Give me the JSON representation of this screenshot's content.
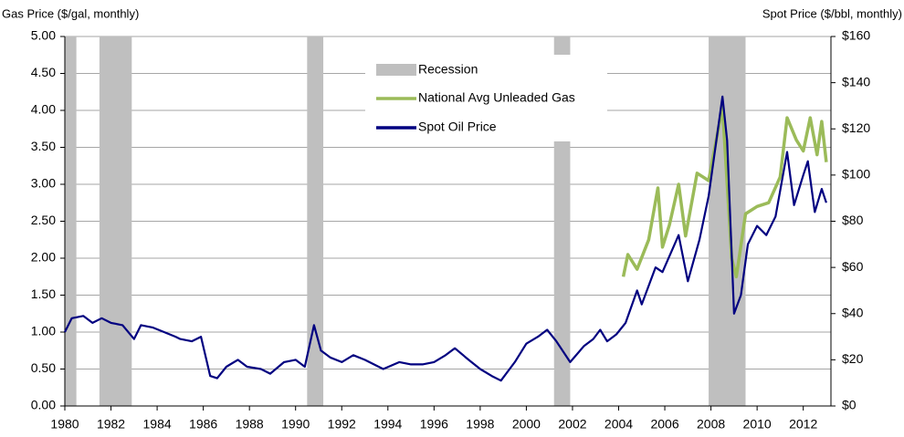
{
  "chart_data": {
    "type": "line",
    "y_label": "Gas Price ($/gal, monthly)",
    "y2_label": "Spot Price ($/bbl, monthly)",
    "xlim": [
      1980,
      2013.2
    ],
    "xticks": [
      1980,
      1982,
      1984,
      1986,
      1988,
      1990,
      1992,
      1994,
      1996,
      1998,
      2000,
      2002,
      2004,
      2006,
      2008,
      2010,
      2012
    ],
    "ylim": [
      0,
      5
    ],
    "yticks": [
      {
        "value": 0,
        "label": "0.00"
      },
      {
        "value": 0.5,
        "label": "0.50"
      },
      {
        "value": 1,
        "label": "1.00"
      },
      {
        "value": 1.5,
        "label": "1.50"
      },
      {
        "value": 2,
        "label": "2.00"
      },
      {
        "value": 2.5,
        "label": "2.50"
      },
      {
        "value": 3,
        "label": "3.00"
      },
      {
        "value": 3.5,
        "label": "3.50"
      },
      {
        "value": 4,
        "label": "4.00"
      },
      {
        "value": 4.5,
        "label": "4.50"
      },
      {
        "value": 5,
        "label": "5.00"
      }
    ],
    "y2lim": [
      0,
      160
    ],
    "y2ticks": [
      {
        "value": 0,
        "label": "$0"
      },
      {
        "value": 20,
        "label": "$20"
      },
      {
        "value": 40,
        "label": "$40"
      },
      {
        "value": 60,
        "label": "$60"
      },
      {
        "value": 80,
        "label": "$80"
      },
      {
        "value": 100,
        "label": "$100"
      },
      {
        "value": 120,
        "label": "$120"
      },
      {
        "value": 140,
        "label": "$140"
      },
      {
        "value": 160,
        "label": "$160"
      }
    ],
    "grid": true,
    "recessions": {
      "name": "Recession",
      "color": "#bfbfbf",
      "ranges": [
        [
          1980,
          1980.5
        ],
        [
          1981.5,
          1982.9
        ],
        [
          1990.5,
          1991.2
        ],
        [
          2001.2,
          2001.9
        ],
        [
          2007.9,
          2009.5
        ]
      ]
    },
    "series": [
      {
        "name": "National Avg Unleaded Gas",
        "color": "#9bbb59",
        "axis": "y",
        "x": [
          2004.2,
          2004.4,
          2004.8,
          2005.3,
          2005.7,
          2005.9,
          2006.2,
          2006.6,
          2006.9,
          2007.4,
          2007.9,
          2008.5,
          2008.9,
          2009.1,
          2009.5,
          2010.0,
          2010.5,
          2011.0,
          2011.3,
          2011.7,
          2012.0,
          2012.3,
          2012.6,
          2012.8,
          2013.0
        ],
        "values": [
          1.75,
          2.05,
          1.85,
          2.25,
          2.95,
          2.15,
          2.45,
          3.0,
          2.3,
          3.15,
          3.05,
          4.05,
          2.0,
          1.75,
          2.6,
          2.7,
          2.75,
          3.1,
          3.9,
          3.6,
          3.45,
          3.9,
          3.4,
          3.85,
          3.3
        ]
      },
      {
        "name": "Spot Oil Price",
        "color": "#000080",
        "axis": "y2",
        "x": [
          1980.0,
          1980.3,
          1980.8,
          1981.2,
          1981.6,
          1982.0,
          1982.5,
          1983.0,
          1983.3,
          1983.8,
          1984.3,
          1984.8,
          1985.0,
          1985.5,
          1985.9,
          1986.3,
          1986.6,
          1987.0,
          1987.5,
          1987.9,
          1988.5,
          1988.9,
          1989.5,
          1990.0,
          1990.4,
          1990.8,
          1991.1,
          1991.5,
          1992.0,
          1992.5,
          1993.0,
          1993.8,
          1994.5,
          1995.0,
          1995.5,
          1996.0,
          1996.5,
          1996.9,
          1997.5,
          1998.0,
          1998.5,
          1998.9,
          1999.5,
          2000.0,
          2000.5,
          2000.9,
          2001.3,
          2001.9,
          2002.5,
          2002.9,
          2003.2,
          2003.5,
          2003.9,
          2004.3,
          2004.8,
          2005.0,
          2005.6,
          2005.9,
          2006.6,
          2007.0,
          2007.5,
          2007.9,
          2008.5,
          2008.7,
          2009.0,
          2009.3,
          2009.6,
          2010.0,
          2010.4,
          2010.8,
          2011.3,
          2011.6,
          2012.0,
          2012.2,
          2012.5,
          2012.8,
          2013.0
        ],
        "values": [
          32,
          38,
          39,
          36,
          38,
          36,
          35,
          29,
          35,
          34,
          32,
          30,
          29,
          28,
          30,
          13,
          12,
          17,
          20,
          17,
          16,
          14,
          19,
          20,
          17,
          35,
          24,
          21,
          19,
          22,
          20,
          16,
          19,
          18,
          18,
          19,
          22,
          25,
          20,
          16,
          13,
          11,
          19,
          27,
          30,
          33,
          28,
          19,
          26,
          29,
          33,
          28,
          31,
          36,
          50,
          44,
          60,
          58,
          74,
          54,
          72,
          91,
          134,
          115,
          40,
          48,
          70,
          78,
          74,
          82,
          110,
          87,
          100,
          106,
          84,
          94,
          88
        ]
      }
    ]
  }
}
